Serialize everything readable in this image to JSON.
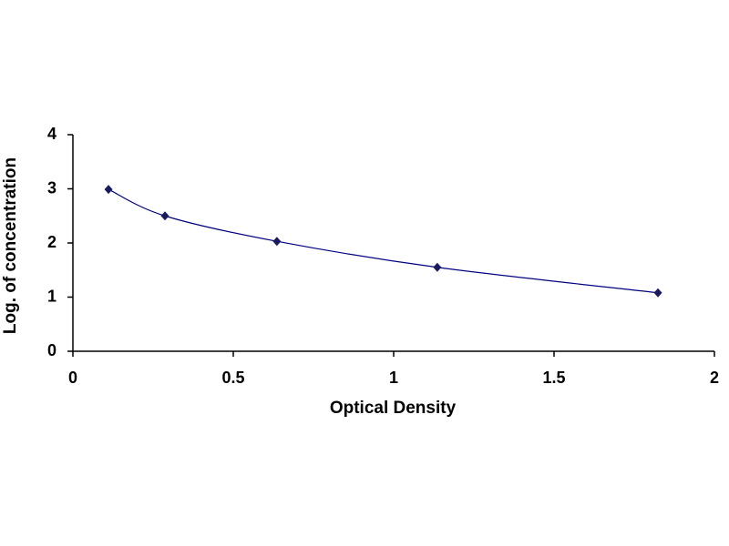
{
  "chart_data": {
    "type": "scatter",
    "smooth": true,
    "xlabel": "Optical Density",
    "ylabel": "Log. of concentration",
    "x": [
      0.111,
      0.287,
      0.636,
      1.136,
      1.824
    ],
    "values": [
      2.99,
      2.5,
      2.03,
      1.55,
      1.08
    ],
    "color": "#000080",
    "marker_color": "#1a1a5e",
    "xlim": [
      0,
      2
    ],
    "ylim": [
      0,
      4
    ],
    "xticks": [
      0,
      0.5,
      1,
      1.5,
      2
    ],
    "yticks": [
      0,
      1,
      2,
      3,
      4
    ],
    "grid": false
  }
}
